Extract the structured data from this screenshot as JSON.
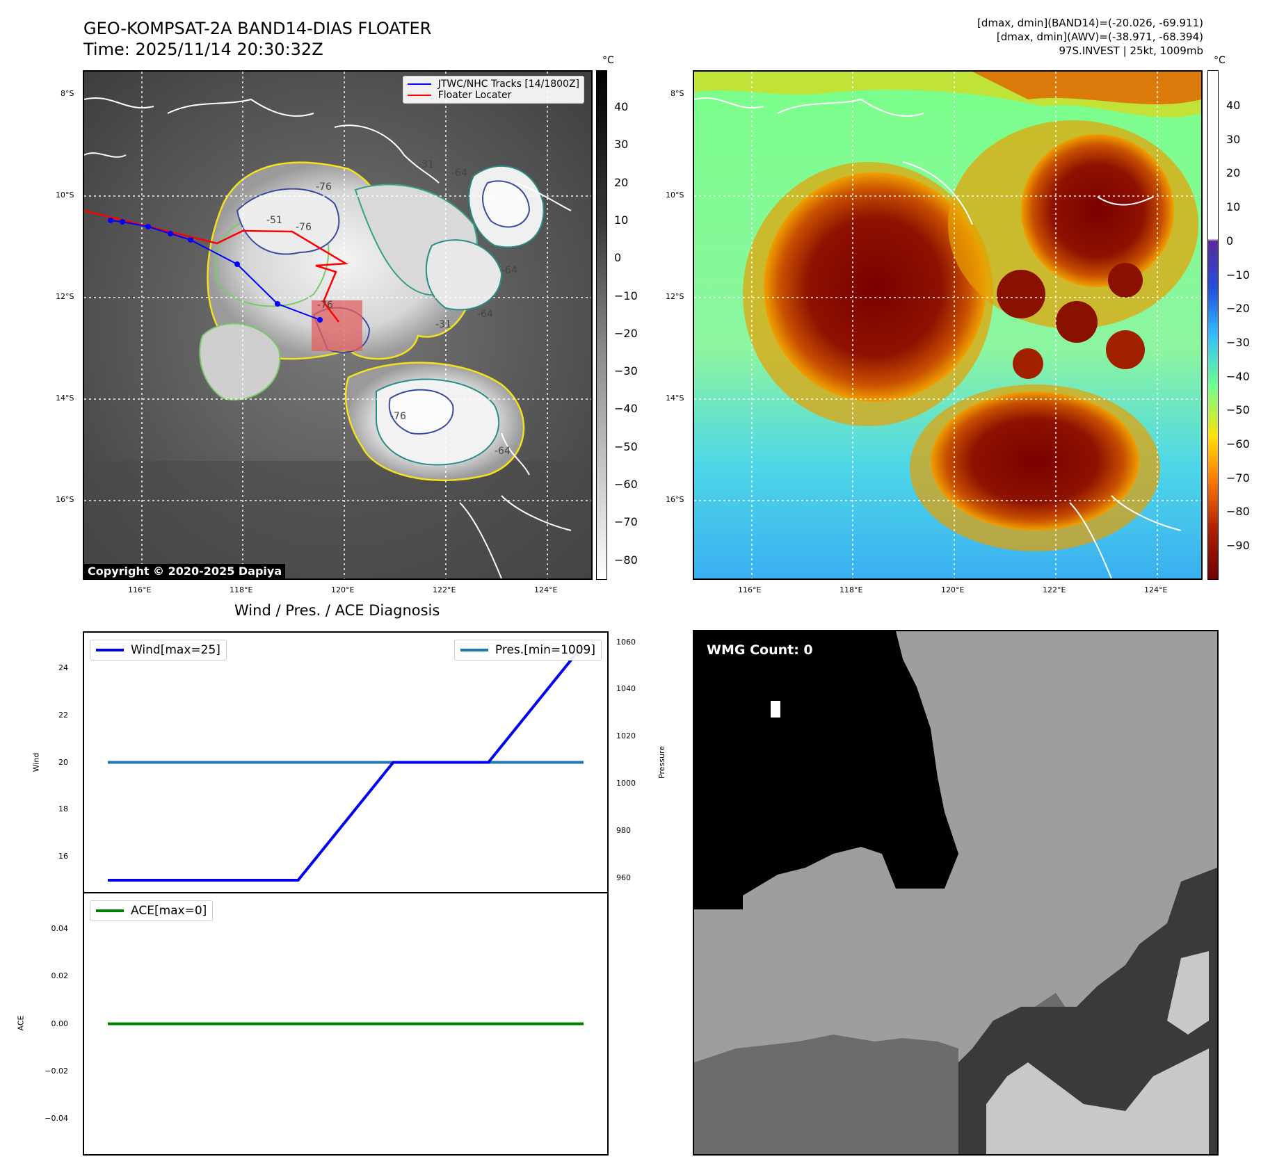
{
  "header": {
    "title": "GEO-KOMPSAT-2A BAND14-DIAS FLOATER",
    "time": "Time: 2025/11/14 20:30:32Z",
    "dmax_band14": "[dmax, dmin](BAND14)=(-20.026, -69.911)",
    "dmax_awv": "[dmax, dmin](AWV)=(-38.971, -68.394)",
    "storm": "97S.INVEST | 25kt, 1009mb"
  },
  "map": {
    "lat_labels": [
      "8°S",
      "10°S",
      "12°S",
      "14°S",
      "16°S"
    ],
    "lon_labels": [
      "116°E",
      "118°E",
      "120°E",
      "122°E",
      "124°E"
    ],
    "legend_tracks": "JTWC/NHC Tracks [14/1800Z]",
    "legend_floater": "Floater Locater",
    "copyright": "Copyright © 2020-2025 Dapiya",
    "contour_labels": [
      "-76",
      "-51",
      "-76",
      "-64",
      "-31",
      "-64",
      "-76",
      "-64",
      "-31",
      "-76",
      "-64"
    ],
    "colors": {
      "track": "#0000ff",
      "floater": "#ff0000",
      "floater_box": "#e06060"
    }
  },
  "colorbar_left": {
    "unit": "°C",
    "ticks": [
      "40",
      "30",
      "20",
      "10",
      "0",
      "−10",
      "−20",
      "−30",
      "−40",
      "−50",
      "−60",
      "−70",
      "−80"
    ]
  },
  "colorbar_right": {
    "unit": "°C",
    "ticks": [
      "40",
      "30",
      "20",
      "10",
      "0",
      "−10",
      "−20",
      "−30",
      "−40",
      "−50",
      "−60",
      "−70",
      "−80",
      "−90"
    ]
  },
  "wmg": {
    "label": "WMG Count: 0"
  },
  "diagnosis": {
    "title": "Wind / Pres. / ACE Diagnosis",
    "wind_legend": "Wind[max=25]",
    "pres_legend": "Pres.[min=1009]",
    "ace_legend": "ACE[max=0]",
    "wind_ylabel": "Wind",
    "pres_ylabel": "Pressure",
    "ace_ylabel": "ACE",
    "wind_ticks": [
      "24",
      "22",
      "20",
      "18",
      "16"
    ],
    "pres_ticks": [
      "1060",
      "1040",
      "1020",
      "1000",
      "980",
      "960"
    ],
    "ace_ticks": [
      "0.04",
      "0.02",
      "0.00",
      "−0.02",
      "−0.04"
    ],
    "colors": {
      "wind": "#0000ee",
      "pres": "#1f77b4",
      "ace": "#008000"
    }
  },
  "chart_data": [
    {
      "type": "line",
      "title": "Wind / Pres. / ACE Diagnosis",
      "ylabel": "Wind",
      "ylim": [
        14.5,
        25.5
      ],
      "x": [
        0,
        1,
        2,
        3,
        4,
        5
      ],
      "series": [
        {
          "name": "Wind[max=25]",
          "values": [
            15,
            15,
            15,
            20,
            20,
            25
          ]
        }
      ]
    },
    {
      "type": "line",
      "ylabel": "Pressure",
      "ylim": [
        954,
        1064
      ],
      "x": [
        0,
        1,
        2,
        3,
        4,
        5
      ],
      "series": [
        {
          "name": "Pres.[min=1009]",
          "values": [
            1009,
            1009,
            1009,
            1009,
            1009,
            1009
          ]
        }
      ]
    },
    {
      "type": "line",
      "ylabel": "ACE",
      "ylim": [
        -0.055,
        0.055
      ],
      "x": [
        0,
        1,
        2,
        3,
        4,
        5
      ],
      "series": [
        {
          "name": "ACE[max=0]",
          "values": [
            0,
            0,
            0,
            0,
            0,
            0
          ]
        }
      ]
    }
  ]
}
